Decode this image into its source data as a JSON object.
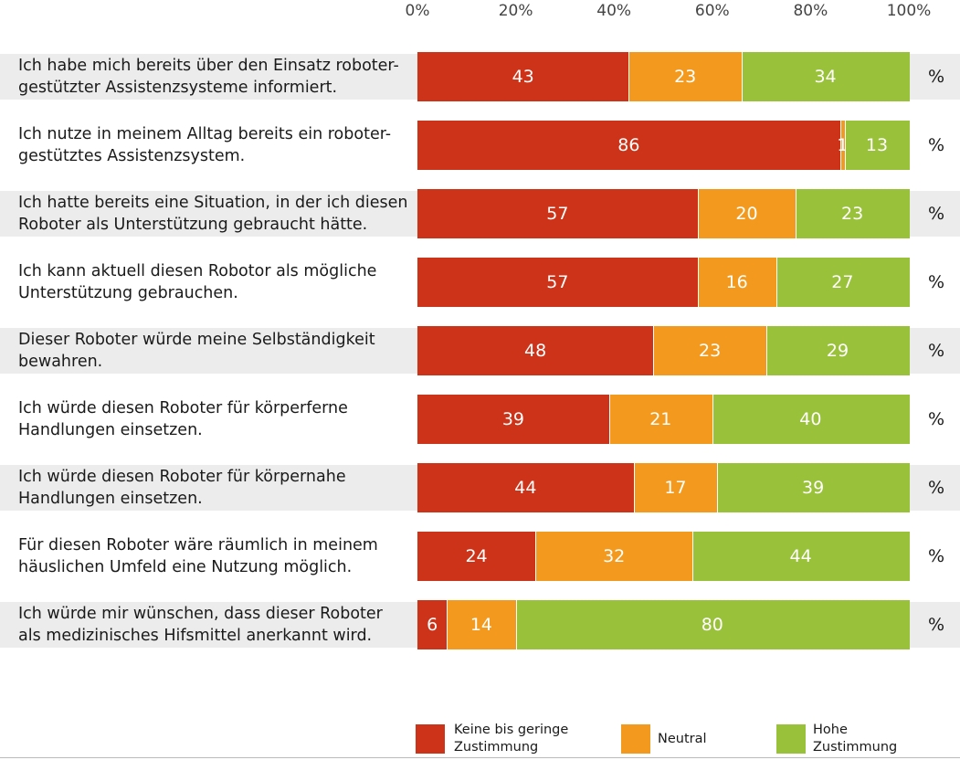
{
  "chart_data": {
    "type": "bar",
    "orientation": "horizontal",
    "stacked": true,
    "x_ticks": [
      "0%",
      "20%",
      "40%",
      "60%",
      "80%",
      "100%"
    ],
    "xlim": [
      0,
      100
    ],
    "unit": "%",
    "categories": [
      "Ich habe mich bereits über den Einsatz roboter-\ngestützter Assistenzsysteme informiert.",
      "Ich nutze in meinem Alltag bereits ein roboter-\ngestütztes Assistenzsystem.",
      "Ich hatte bereits eine Situation, in der ich diesen\nRoboter als Unterstützung gebraucht hätte.",
      "Ich kann aktuell diesen Robotor als mögliche\nUnterstützung gebrauchen.",
      "Dieser Roboter würde meine Selbständigkeit\nbewahren.",
      "Ich würde diesen Roboter für körperferne\nHandlungen einsetzen.",
      "Ich würde diesen Roboter für körpernahe\nHandlungen einsetzen.",
      "Für diesen Roboter wäre räumlich in meinem\nhäuslichen Umfeld eine Nutzung möglich.",
      "Ich würde mir wünschen, dass dieser Roboter\nals medizinisches Hifsmittel anerkannt wird."
    ],
    "series": [
      {
        "name": "Keine bis geringe Zustimmung",
        "color": "#cc3318",
        "values": [
          43,
          86,
          57,
          57,
          48,
          39,
          44,
          24,
          6
        ]
      },
      {
        "name": "Neutral",
        "color": "#f39a1e",
        "values": [
          23,
          1,
          20,
          16,
          23,
          21,
          17,
          32,
          14
        ]
      },
      {
        "name": "Hohe Zustimmung",
        "color": "#99c13a",
        "values": [
          34,
          13,
          23,
          27,
          29,
          40,
          39,
          44,
          80
        ]
      }
    ],
    "legend_position": "bottom"
  }
}
